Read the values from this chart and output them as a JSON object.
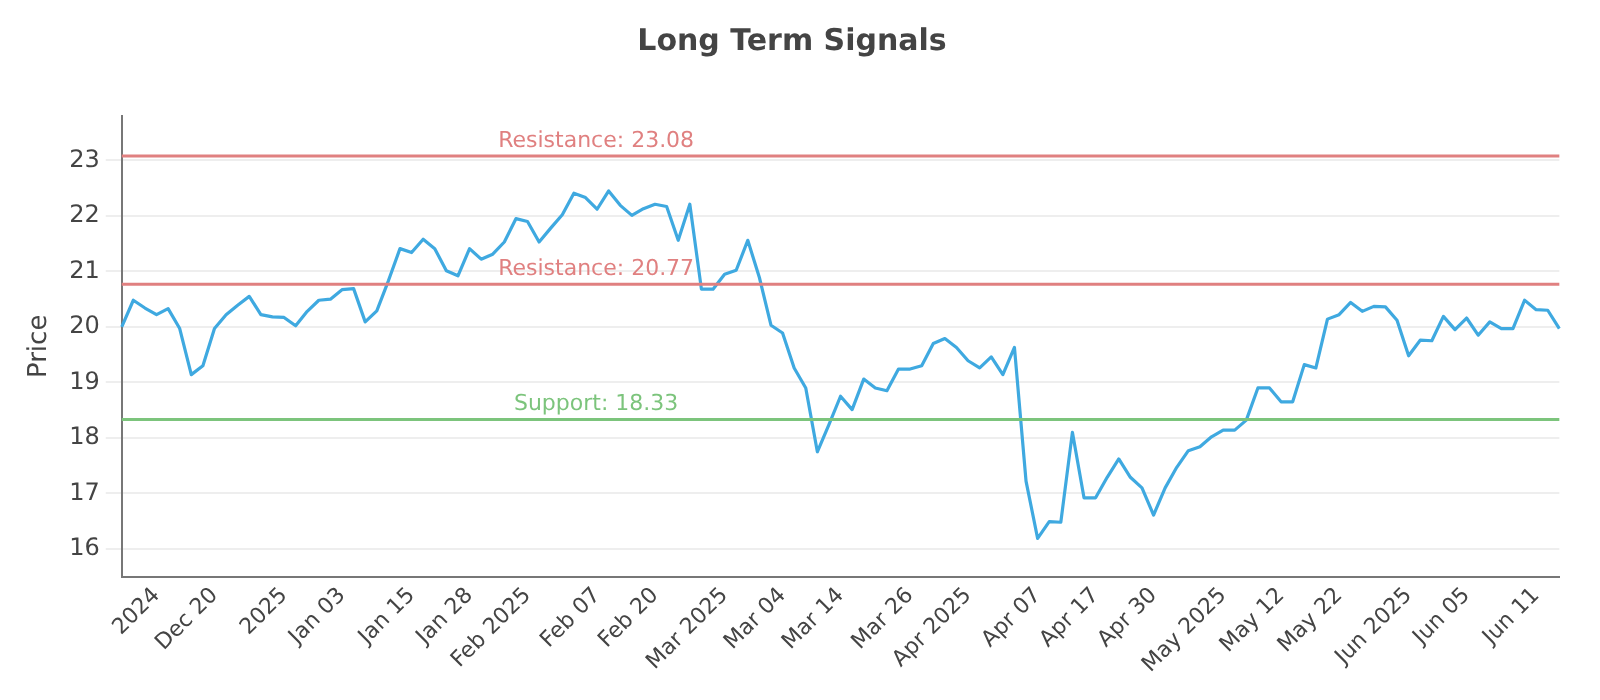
{
  "chart_data": {
    "type": "line",
    "title": "Long Term Signals",
    "ylabel": "Price",
    "categories": [
      null,
      null,
      null,
      "2024",
      null,
      null,
      null,
      null,
      "Dec 20",
      null,
      null,
      null,
      null,
      null,
      "2025",
      null,
      null,
      null,
      null,
      "Jan 03",
      null,
      null,
      null,
      null,
      null,
      "Jan 15",
      null,
      null,
      null,
      null,
      "Jan 28",
      null,
      null,
      null,
      null,
      "Feb 2025",
      null,
      null,
      null,
      null,
      null,
      "Feb 07",
      null,
      null,
      null,
      null,
      "Feb 20",
      null,
      null,
      null,
      null,
      null,
      "Mar 2025",
      null,
      null,
      null,
      null,
      "Mar 04",
      null,
      null,
      null,
      null,
      "Mar 14",
      null,
      null,
      null,
      null,
      null,
      "Mar 26",
      null,
      null,
      null,
      null,
      "Apr 2025",
      null,
      null,
      null,
      null,
      null,
      "Apr 07",
      null,
      null,
      null,
      null,
      "Apr 17",
      null,
      null,
      null,
      null,
      "Apr 30",
      null,
      null,
      null,
      null,
      null,
      "May 2025",
      null,
      null,
      null,
      null,
      "May 12",
      null,
      null,
      null,
      null,
      "May 22",
      null,
      null,
      null,
      null,
      null,
      "Jun 2025",
      null,
      null,
      null,
      null,
      "Jun 05",
      null,
      null,
      null,
      null,
      null,
      "Jun 11",
      null,
      null
    ],
    "series": [
      {
        "color": "#3fa9e0",
        "values": [
          20.0,
          20.48,
          20.34,
          20.22,
          20.33,
          19.97,
          19.14,
          19.3,
          19.97,
          20.22,
          20.39,
          20.55,
          20.22,
          20.18,
          20.17,
          20.02,
          20.28,
          20.48,
          20.5,
          20.67,
          20.69,
          20.09,
          20.29,
          20.83,
          21.41,
          21.34,
          21.58,
          21.41,
          21.01,
          20.92,
          21.41,
          21.22,
          21.31,
          21.53,
          21.95,
          21.9,
          21.53,
          21.78,
          22.02,
          22.41,
          22.33,
          22.12,
          22.45,
          22.19,
          22.01,
          22.13,
          22.21,
          22.17,
          21.56,
          22.21,
          20.68,
          20.68,
          20.95,
          21.02,
          21.56,
          20.89,
          20.03,
          19.89,
          19.26,
          18.9,
          17.75,
          18.24,
          18.75,
          18.51,
          19.06,
          18.9,
          18.85,
          19.24,
          19.24,
          19.3,
          19.7,
          19.79,
          19.63,
          19.39,
          19.26,
          19.46,
          19.14,
          19.63,
          17.22,
          16.19,
          16.49,
          16.48,
          18.1,
          16.92,
          16.92,
          17.29,
          17.62,
          17.29,
          17.1,
          16.61,
          17.1,
          17.47,
          17.77,
          17.84,
          18.02,
          18.14,
          18.14,
          18.32,
          18.9,
          18.9,
          18.65,
          18.65,
          19.32,
          19.26,
          20.14,
          20.22,
          20.44,
          20.28,
          20.37,
          20.36,
          20.12,
          19.48,
          19.76,
          19.75,
          20.19,
          19.95,
          20.16,
          19.85,
          20.09,
          19.97,
          19.97,
          20.48,
          20.31,
          20.3,
          19.97
        ]
      }
    ],
    "ylim": [
      15.5,
      23.8
    ],
    "yticks": [
      16,
      17,
      18,
      19,
      20,
      21,
      22,
      23
    ],
    "grid": "y",
    "marker": "none",
    "line_style": "solid",
    "legend": false,
    "ref_lines": [
      {
        "axis": "y",
        "value": 23.08,
        "label": "Resistance: 23.08",
        "color": "#e08080"
      },
      {
        "axis": "y",
        "value": 20.77,
        "label": "Resistance: 20.77",
        "color": "#e08080"
      },
      {
        "axis": "y",
        "value": 18.33,
        "label": "Support: 18.33",
        "color": "#7cc47c"
      }
    ]
  }
}
